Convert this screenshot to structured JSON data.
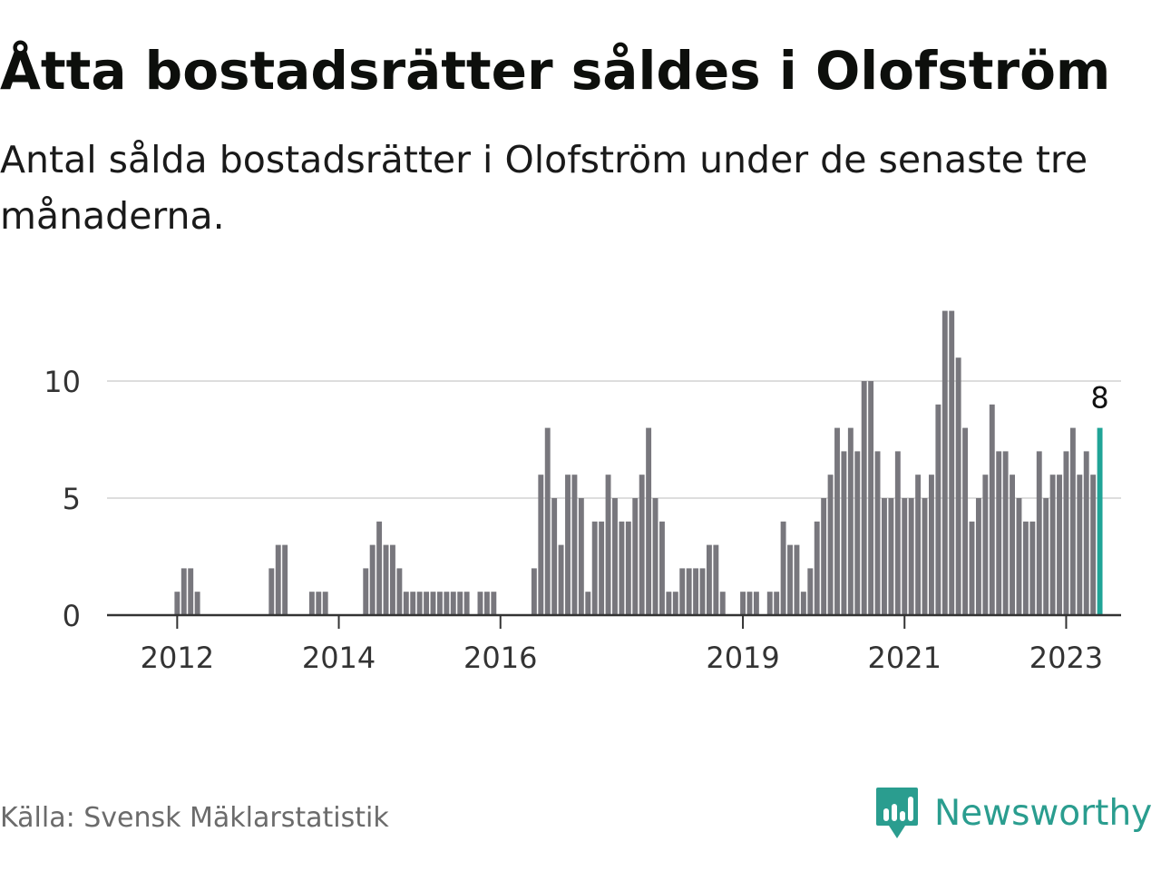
{
  "title": "Åtta bostadsrätter såldes i Olofström",
  "subtitle": "Antal sålda bostadsrätter i Olofström under de senaste tre månaderna.",
  "source": "Källa: Svensk Mäklarstatistik",
  "brand": {
    "name": "Newsworthy",
    "icon": "newsworthy-logo-icon",
    "color": "#2a9d8f"
  },
  "chart_data": {
    "type": "bar",
    "title": "Åtta bostadsrätter såldes i Olofström",
    "subtitle": "Antal sålda bostadsrätter i Olofström under de senaste tre månaderna.",
    "xlabel": "",
    "ylabel": "",
    "x_ticks": [
      2012,
      2014,
      2016,
      2019,
      2021,
      2023
    ],
    "y_ticks": [
      0,
      5,
      10
    ],
    "ylim": [
      0,
      13
    ],
    "grid": true,
    "start_period": "2011-03",
    "period": "monthly",
    "bar_color": "#78777d",
    "highlight_color": "#20a497",
    "highlight_label": "8",
    "values": [
      0,
      0,
      0,
      0,
      0,
      0,
      0,
      0,
      0,
      0,
      1,
      2,
      2,
      1,
      0,
      0,
      0,
      0,
      0,
      0,
      0,
      0,
      0,
      0,
      2,
      3,
      3,
      0,
      0,
      0,
      1,
      1,
      1,
      0,
      0,
      0,
      0,
      0,
      2,
      3,
      4,
      3,
      3,
      2,
      1,
      1,
      1,
      1,
      1,
      1,
      1,
      1,
      1,
      1,
      0,
      1,
      1,
      1,
      0,
      0,
      0,
      0,
      0,
      2,
      6,
      8,
      5,
      3,
      6,
      6,
      5,
      1,
      4,
      4,
      6,
      5,
      4,
      4,
      5,
      6,
      8,
      5,
      4,
      1,
      1,
      2,
      2,
      2,
      2,
      3,
      3,
      1,
      0,
      0,
      1,
      1,
      1,
      0,
      1,
      1,
      4,
      3,
      3,
      1,
      2,
      4,
      5,
      6,
      8,
      7,
      8,
      7,
      10,
      10,
      7,
      5,
      5,
      7,
      5,
      5,
      6,
      5,
      6,
      9,
      13,
      13,
      11,
      8,
      4,
      5,
      6,
      9,
      7,
      7,
      6,
      5,
      4,
      4,
      7,
      5,
      6,
      6,
      7,
      8,
      6,
      7,
      6,
      8
    ]
  }
}
